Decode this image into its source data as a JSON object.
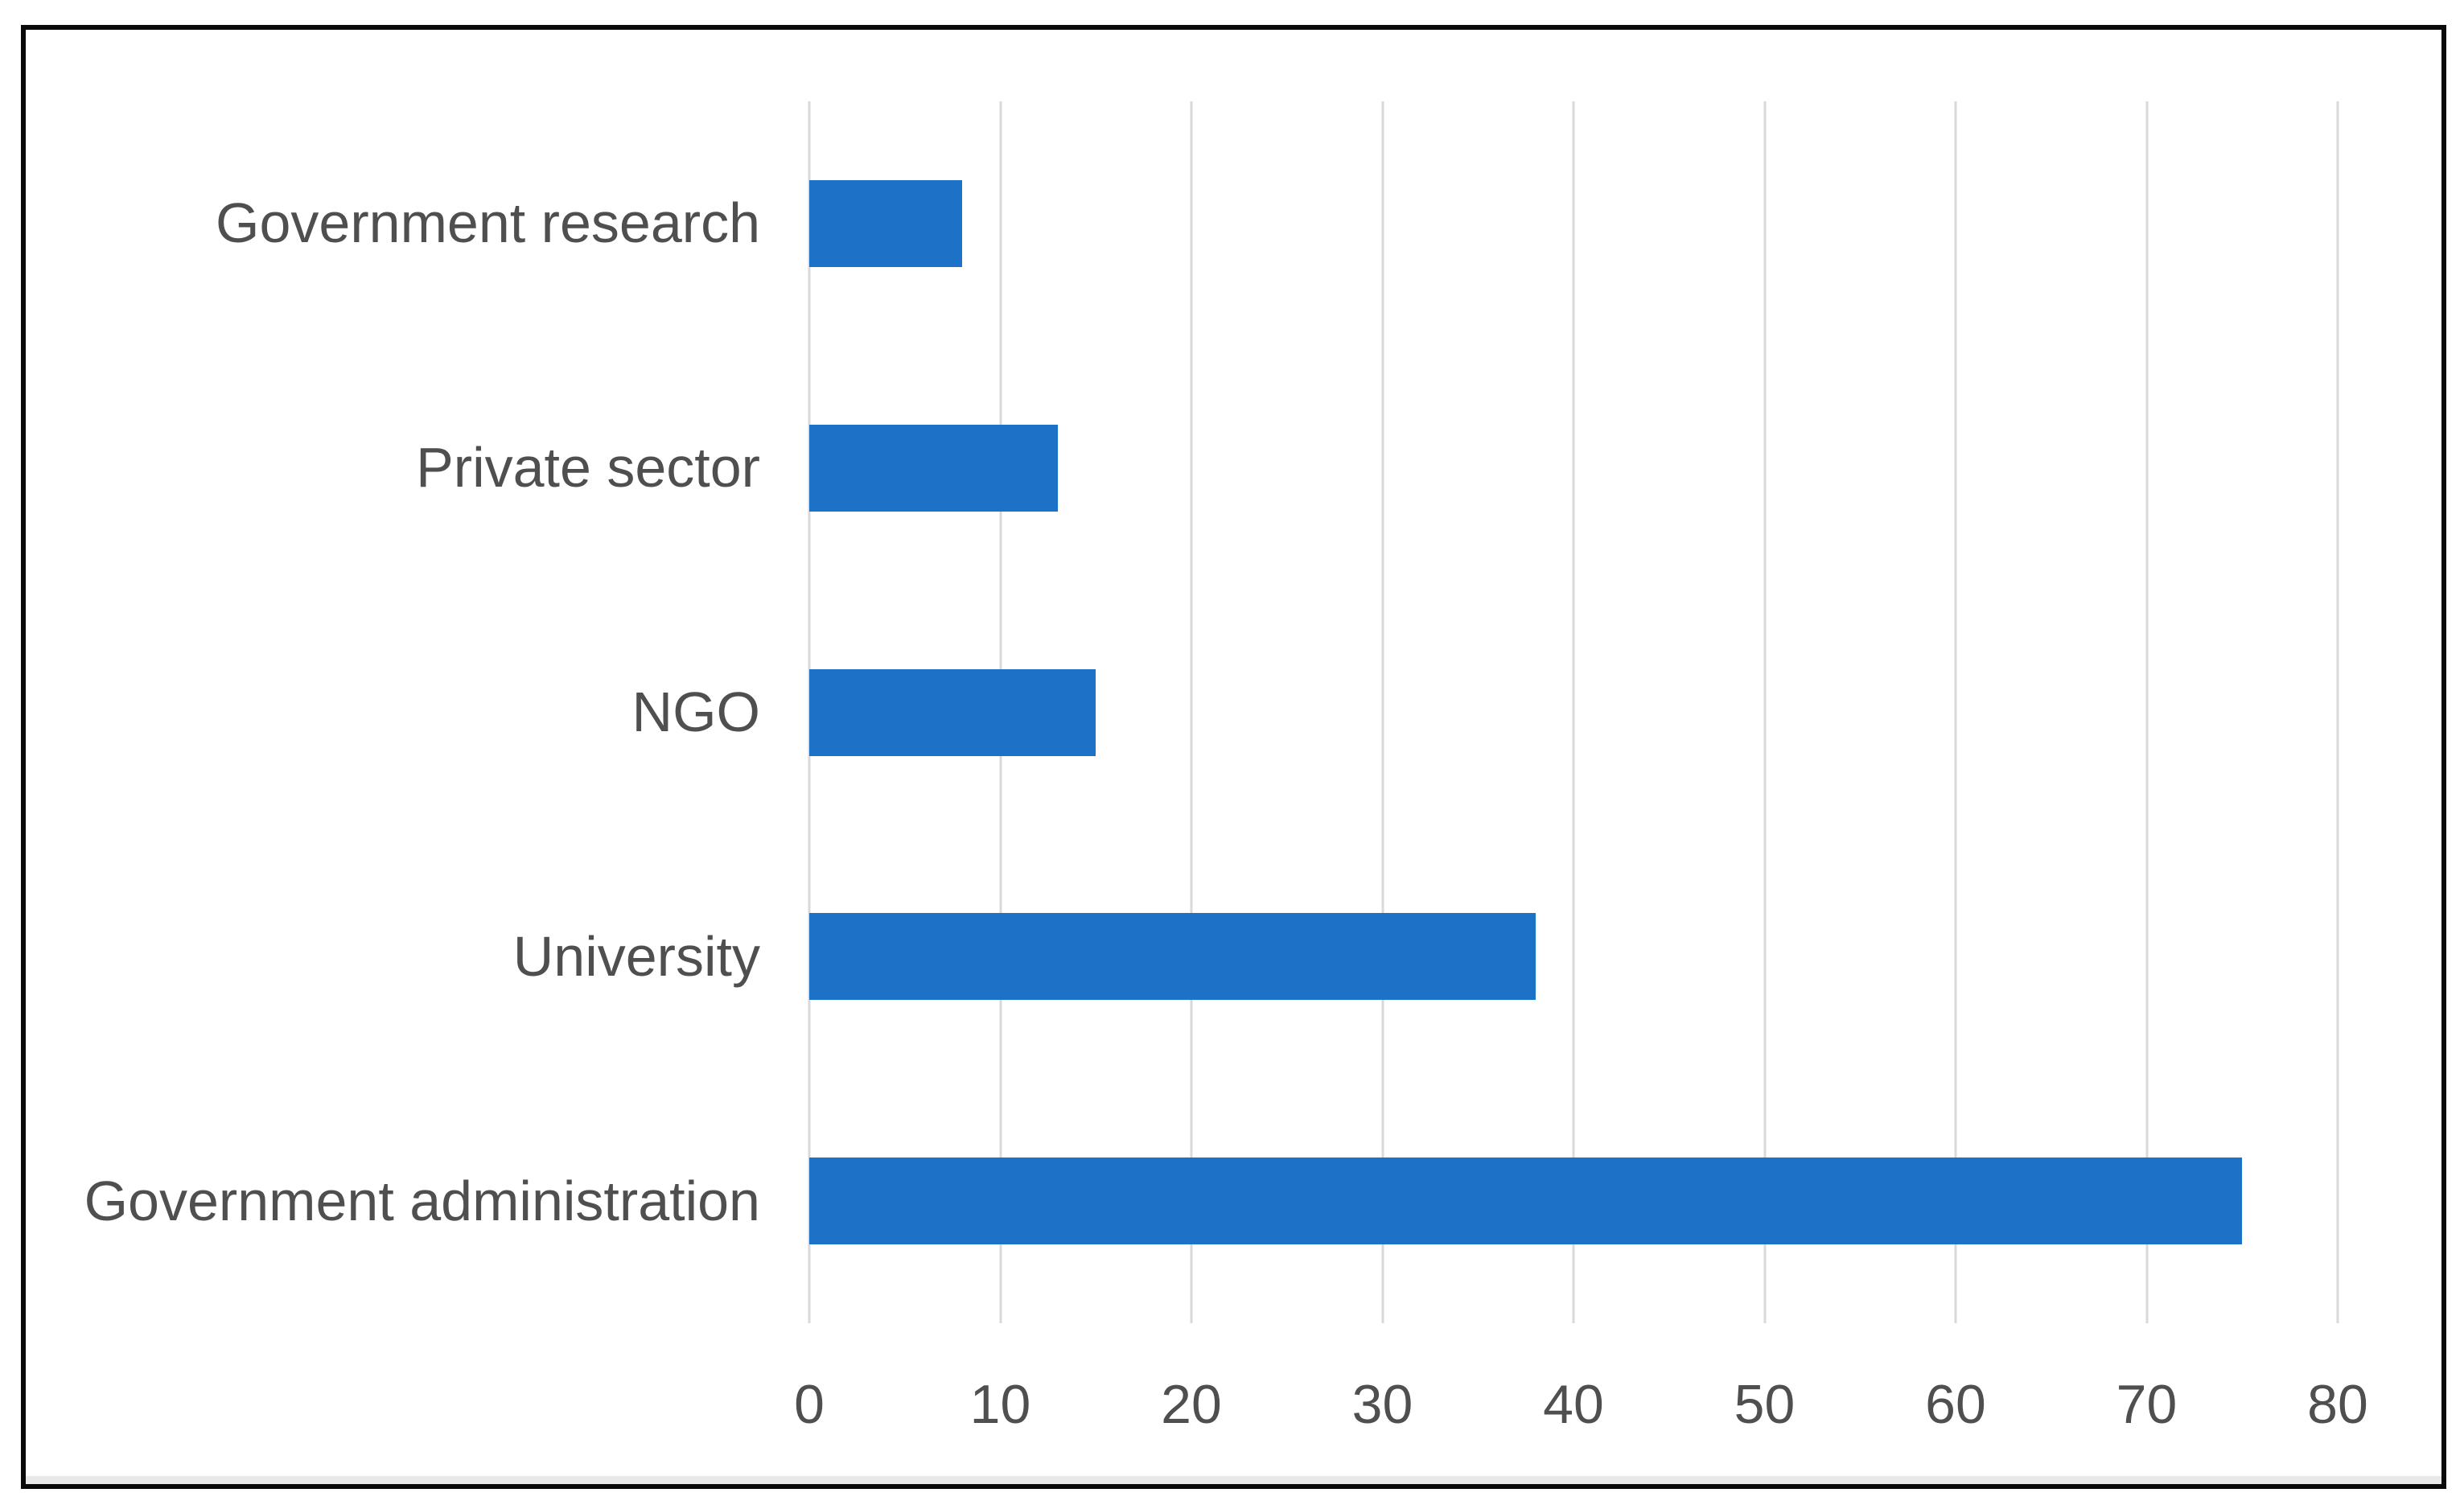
{
  "chart_data": {
    "type": "bar",
    "orientation": "horizontal",
    "title": "",
    "xlabel": "",
    "ylabel": "",
    "categories": [
      "Government research",
      "Private sector",
      "NGO",
      "University",
      "Government administration"
    ],
    "values": [
      8,
      13,
      15,
      38,
      75
    ],
    "xlim": [
      0,
      80
    ],
    "xticks": [
      "0",
      "10",
      "20",
      "30",
      "40",
      "50",
      "60",
      "70",
      "80"
    ],
    "grid": "vertical-gridlines",
    "legend": "none",
    "colors": {
      "bar": "#1B72C7",
      "gridline": "#D9D9D9",
      "axis_text": "#4F4F4F",
      "frame_border": "#0A0A0A",
      "background": "#FFFFFF",
      "bottom_edge_strip": "#E9E9E9"
    }
  }
}
